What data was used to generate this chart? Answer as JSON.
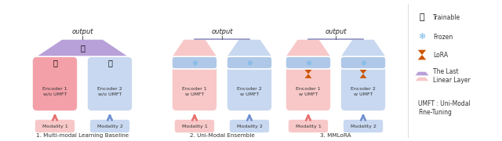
{
  "bg_color": "#ffffff",
  "pink": "#f4a0a8",
  "blue": "#a0b8e0",
  "purple": "#b8a0d8",
  "light_pink": "#f8c8c8",
  "light_blue": "#c8d8f0",
  "arrow_pink": "#e87070",
  "arrow_blue": "#7090d0",
  "text_color": "#333333",
  "diagram1_label": "1. Multi-modal Learning Baseline",
  "diagram2_label": "2. Uni-Modal Ensemble",
  "diagram3_label": "3. MMLoRA",
  "legend_trainable": "Trainable",
  "legend_frozen": "Frozen",
  "legend_lora": "LoRA",
  "legend_layer": "The Last\nLinear Layer",
  "legend_umft": "UMFT : Uni-Modal\nFine-Tuning"
}
